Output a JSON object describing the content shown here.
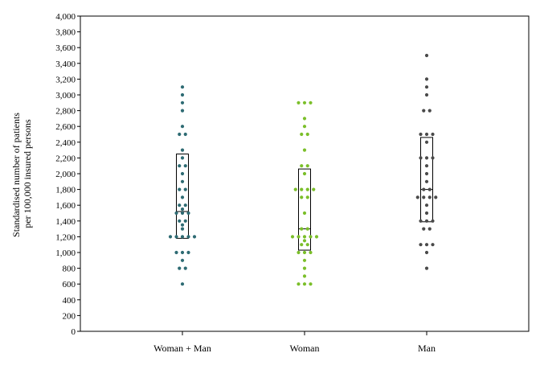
{
  "chart_data": {
    "type": "dot-box",
    "title": "",
    "ylabel": [
      "Standardised number of patients",
      "per 100,000 insured persons"
    ],
    "xlabel": "",
    "ylim": [
      0,
      4000
    ],
    "ytick_step": 200,
    "ytick_labels": [
      "0",
      "200",
      "400",
      "600",
      "800",
      "1,000",
      "1,200",
      "1,400",
      "1,600",
      "1,800",
      "2,000",
      "2,200",
      "2,400",
      "2,600",
      "2,800",
      "3,000",
      "3,200",
      "3,400",
      "3,600",
      "3,800",
      "4,000"
    ],
    "grid": false,
    "categories": [
      "Woman + Man",
      "Woman",
      "Man"
    ],
    "series": [
      {
        "category": "Woman + Man",
        "color": "#2e6b73",
        "box": {
          "q1": 1180,
          "median": 1520,
          "q3": 2250
        },
        "points": [
          3100,
          3000,
          2900,
          2800,
          2600,
          2500,
          2500,
          2300,
          2200,
          2100,
          2100,
          2000,
          1900,
          1800,
          1800,
          1700,
          1600,
          1600,
          1550,
          1500,
          1500,
          1500,
          1400,
          1400,
          1350,
          1300,
          1200,
          1200,
          1200,
          1200,
          1200,
          1000,
          1000,
          1000,
          900,
          800,
          800,
          600
        ]
      },
      {
        "category": "Woman",
        "color": "#7bbf2a",
        "box": {
          "q1": 1030,
          "median": 1300,
          "q3": 2060
        },
        "points": [
          2900,
          2900,
          2900,
          2700,
          2600,
          2500,
          2500,
          2300,
          2100,
          2100,
          2000,
          1800,
          1800,
          1800,
          1800,
          1700,
          1700,
          1500,
          1300,
          1300,
          1200,
          1200,
          1200,
          1200,
          1200,
          1150,
          1100,
          1100,
          1000,
          1000,
          1000,
          900,
          800,
          700,
          600,
          600,
          600
        ]
      },
      {
        "category": "Man",
        "color": "#4a4a4a",
        "box": {
          "q1": 1390,
          "median": 1800,
          "q3": 2460
        },
        "points": [
          3500,
          3200,
          3100,
          3000,
          2800,
          2800,
          2500,
          2500,
          2500,
          2400,
          2200,
          2200,
          2200,
          2100,
          2000,
          1900,
          1800,
          1800,
          1700,
          1700,
          1700,
          1700,
          1600,
          1500,
          1400,
          1400,
          1400,
          1300,
          1300,
          1100,
          1100,
          1100,
          1000,
          800
        ]
      }
    ]
  }
}
